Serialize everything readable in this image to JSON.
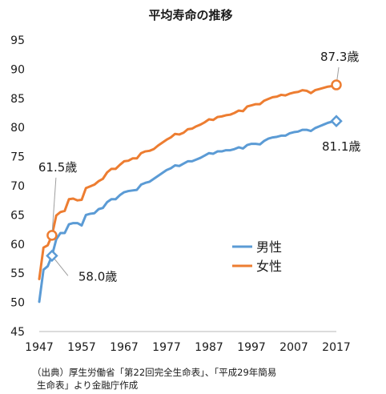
{
  "chart_data": {
    "type": "line",
    "title": "平均寿命の推移",
    "xlabel": "",
    "ylabel": "",
    "xlim": [
      1947,
      2017
    ],
    "ylim": [
      45,
      95
    ],
    "xticks": [
      "1947",
      "1957",
      "1967",
      "1977",
      "1987",
      "1997",
      "2007",
      "2017"
    ],
    "yticks": [
      "45",
      "50",
      "55",
      "60",
      "65",
      "70",
      "75",
      "80",
      "85",
      "90",
      "95"
    ],
    "grid": false,
    "legend_position": "right",
    "series": [
      {
        "name": "男性",
        "color": "#5b9bd5",
        "x": [
          1947,
          1948,
          1949,
          1950,
          1951,
          1952,
          1953,
          1954,
          1955,
          1956,
          1957,
          1958,
          1959,
          1960,
          1961,
          1962,
          1963,
          1964,
          1965,
          1966,
          1967,
          1968,
          1969,
          1970,
          1971,
          1972,
          1973,
          1974,
          1975,
          1976,
          1977,
          1978,
          1979,
          1980,
          1981,
          1982,
          1983,
          1984,
          1985,
          1986,
          1987,
          1988,
          1989,
          1990,
          1991,
          1992,
          1993,
          1994,
          1995,
          1996,
          1997,
          1998,
          1999,
          2000,
          2001,
          2002,
          2003,
          2004,
          2005,
          2006,
          2007,
          2008,
          2009,
          2010,
          2011,
          2012,
          2013,
          2014,
          2015,
          2016,
          2017
        ],
        "values": [
          50.1,
          55.6,
          56.2,
          58.0,
          60.8,
          61.9,
          61.9,
          63.4,
          63.6,
          63.6,
          63.2,
          65.0,
          65.2,
          65.3,
          66.0,
          66.2,
          67.2,
          67.7,
          67.7,
          68.4,
          68.9,
          69.1,
          69.2,
          69.3,
          70.2,
          70.5,
          70.7,
          71.2,
          71.7,
          72.2,
          72.7,
          73.0,
          73.5,
          73.4,
          73.8,
          74.2,
          74.2,
          74.5,
          74.8,
          75.2,
          75.6,
          75.5,
          75.9,
          75.9,
          76.1,
          76.1,
          76.3,
          76.6,
          76.4,
          77.0,
          77.2,
          77.2,
          77.1,
          77.7,
          78.1,
          78.3,
          78.4,
          78.6,
          78.6,
          79.0,
          79.2,
          79.3,
          79.6,
          79.6,
          79.4,
          79.9,
          80.2,
          80.5,
          80.8,
          81.0,
          81.1
        ]
      },
      {
        "name": "女性",
        "color": "#ed7d31",
        "x": [
          1947,
          1948,
          1949,
          1950,
          1951,
          1952,
          1953,
          1954,
          1955,
          1956,
          1957,
          1958,
          1959,
          1960,
          1961,
          1962,
          1963,
          1964,
          1965,
          1966,
          1967,
          1968,
          1969,
          1970,
          1971,
          1972,
          1973,
          1974,
          1975,
          1976,
          1977,
          1978,
          1979,
          1980,
          1981,
          1982,
          1983,
          1984,
          1985,
          1986,
          1987,
          1988,
          1989,
          1990,
          1991,
          1992,
          1993,
          1994,
          1995,
          1996,
          1997,
          1998,
          1999,
          2000,
          2001,
          2002,
          2003,
          2004,
          2005,
          2006,
          2007,
          2008,
          2009,
          2010,
          2011,
          2012,
          2013,
          2014,
          2015,
          2016,
          2017
        ],
        "values": [
          54.0,
          59.4,
          59.8,
          61.5,
          64.9,
          65.5,
          65.7,
          67.7,
          67.8,
          67.5,
          67.6,
          69.6,
          69.9,
          70.2,
          70.8,
          71.2,
          72.3,
          72.9,
          72.9,
          73.6,
          74.2,
          74.3,
          74.7,
          74.7,
          75.6,
          75.9,
          76.0,
          76.3,
          76.9,
          77.4,
          77.9,
          78.3,
          78.9,
          78.8,
          79.1,
          79.7,
          79.8,
          80.2,
          80.5,
          80.9,
          81.4,
          81.3,
          81.8,
          81.9,
          82.1,
          82.2,
          82.5,
          82.9,
          82.8,
          83.6,
          83.8,
          84.0,
          84.0,
          84.6,
          84.9,
          85.2,
          85.3,
          85.6,
          85.5,
          85.8,
          86.0,
          86.1,
          86.4,
          86.3,
          85.9,
          86.4,
          86.6,
          86.8,
          87.0,
          87.1,
          87.3
        ]
      }
    ],
    "annotations": [
      {
        "series": 0,
        "x": 1950,
        "y": 58.0,
        "label": "58.0歳",
        "marker": "diamond"
      },
      {
        "series": 1,
        "x": 1950,
        "y": 61.5,
        "label": "61.5歳",
        "marker": "circle"
      },
      {
        "series": 0,
        "x": 2017,
        "y": 81.1,
        "label": "81.1歳",
        "marker": "diamond"
      },
      {
        "series": 1,
        "x": 2017,
        "y": 87.3,
        "label": "87.3歳",
        "marker": "circle"
      }
    ]
  },
  "source": {
    "line1": "（出典）厚生労働省「第22回完全生命表」、「平成29年簡易",
    "line2": "生命表」より金融庁作成"
  }
}
